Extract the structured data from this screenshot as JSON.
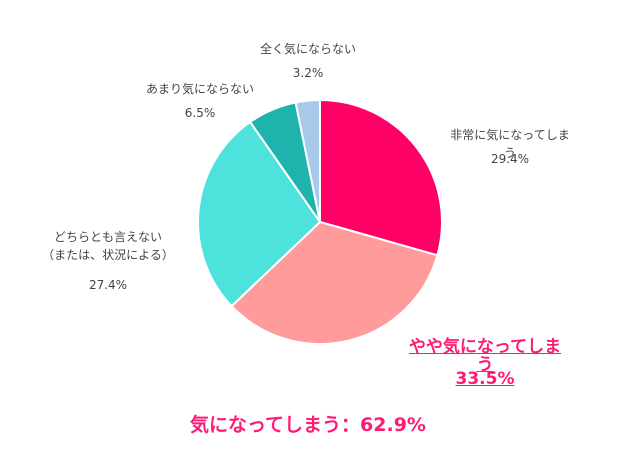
{
  "chart_data": {
    "type": "pie",
    "categories": [
      "非常に気になってしまう",
      "やや気になってしまう",
      "どちらとも言えない\n（または、状況による）",
      "あまり気にならない",
      "全く気にならない"
    ],
    "values": [
      29.4,
      33.5,
      27.4,
      6.5,
      3.2
    ],
    "value_labels": [
      "29.4%",
      "33.5%",
      "27.4%",
      "6.5%",
      "3.2%"
    ],
    "colors": [
      "#ff0066",
      "#ff9b9b",
      "#4de3dc",
      "#1fb3ad",
      "#a7c9ea"
    ],
    "annotation": "気になってしまう：62.9%"
  }
}
